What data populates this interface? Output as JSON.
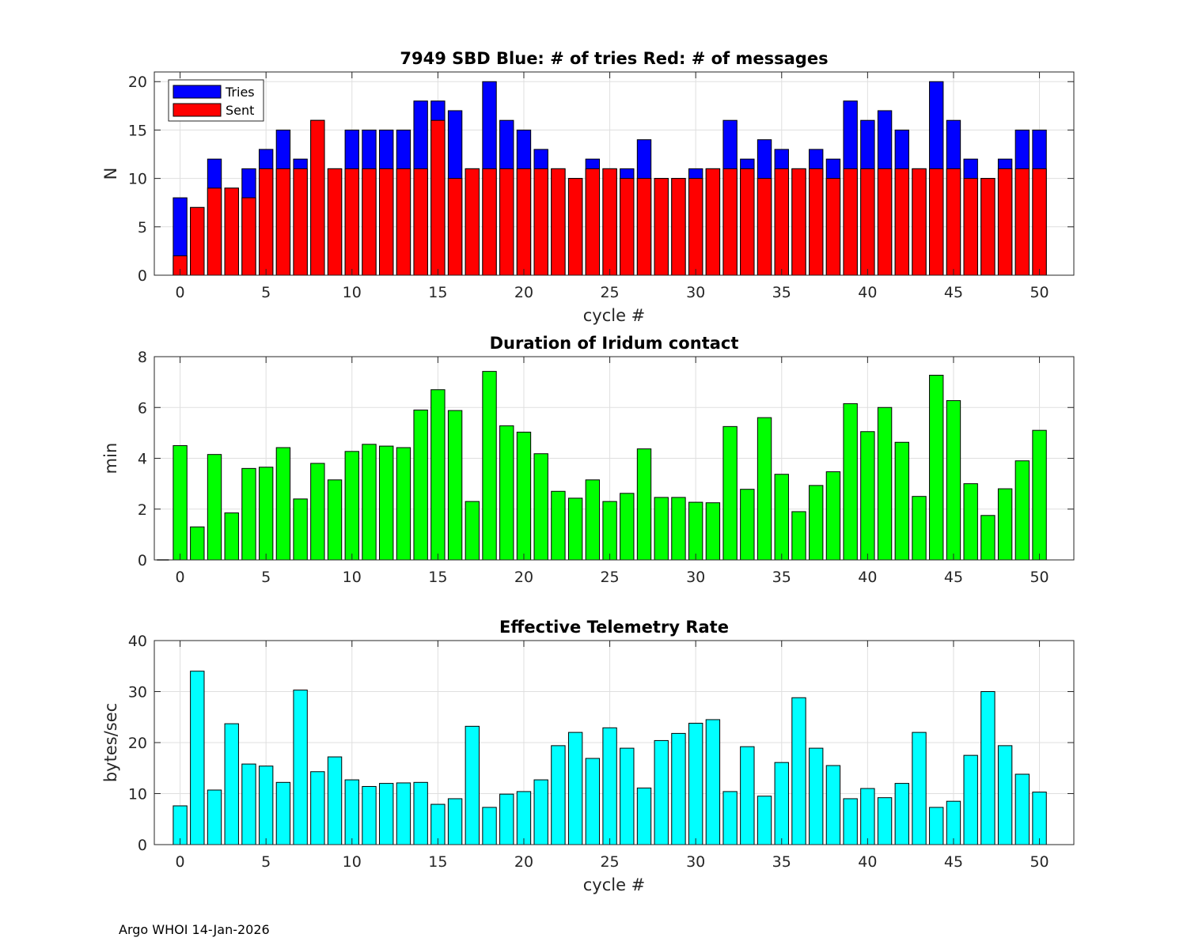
{
  "footer": "Argo WHOI 14-Jan-2026",
  "colors": {
    "tries": "#0000ff",
    "sent": "#ff0000",
    "duration": "#00ff00",
    "rate": "#00ffff",
    "grid": "#dfdfdf",
    "axis": "#262626"
  },
  "chart_data": [
    {
      "type": "bar",
      "title": "7949 SBD  Blue: # of tries   Red: # of messages",
      "xlabel": "cycle #",
      "ylabel": "N",
      "xlim": [
        -1.5,
        52
      ],
      "ylim": [
        0,
        21
      ],
      "xticks": [
        0,
        5,
        10,
        15,
        20,
        25,
        30,
        35,
        40,
        45,
        50
      ],
      "yticks": [
        0,
        5,
        10,
        15,
        20
      ],
      "legend": {
        "position": "top-left",
        "entries": [
          "Tries",
          "Sent"
        ]
      },
      "x": [
        0,
        1,
        2,
        3,
        4,
        5,
        6,
        7,
        8,
        9,
        10,
        11,
        12,
        13,
        14,
        15,
        16,
        17,
        18,
        19,
        20,
        21,
        22,
        23,
        24,
        25,
        26,
        27,
        28,
        29,
        30,
        31,
        32,
        33,
        34,
        35,
        36,
        37,
        38,
        39,
        40,
        41,
        42,
        43,
        44,
        45,
        46,
        47,
        48,
        49,
        50
      ],
      "series": [
        {
          "name": "Tries",
          "values": [
            8,
            7,
            12,
            9,
            11,
            13,
            15,
            12,
            16,
            11,
            15,
            15,
            15,
            15,
            18,
            18,
            17,
            11,
            20,
            16,
            15,
            13,
            11,
            10,
            12,
            11,
            11,
            14,
            10,
            10,
            11,
            11,
            16,
            12,
            14,
            13,
            11,
            13,
            12,
            18,
            16,
            17,
            15,
            11,
            20,
            16,
            12,
            10,
            12,
            15,
            15
          ]
        },
        {
          "name": "Sent",
          "values": [
            2,
            7,
            9,
            9,
            8,
            11,
            11,
            11,
            16,
            11,
            11,
            11,
            11,
            11,
            11,
            16,
            10,
            11,
            11,
            11,
            11,
            11,
            11,
            10,
            11,
            11,
            10,
            10,
            10,
            10,
            10,
            11,
            11,
            11,
            10,
            11,
            11,
            11,
            10,
            11,
            11,
            11,
            11,
            11,
            11,
            11,
            10,
            10,
            11,
            11,
            11
          ]
        }
      ]
    },
    {
      "type": "bar",
      "title": "Duration of Iridum contact",
      "xlabel": "",
      "ylabel": "min",
      "xlim": [
        -1.5,
        52
      ],
      "ylim": [
        0,
        8
      ],
      "xticks": [
        0,
        5,
        10,
        15,
        20,
        25,
        30,
        35,
        40,
        45,
        50
      ],
      "yticks": [
        0,
        2,
        4,
        6,
        8
      ],
      "x": [
        0,
        1,
        2,
        3,
        4,
        5,
        6,
        7,
        8,
        9,
        10,
        11,
        12,
        13,
        14,
        15,
        16,
        17,
        18,
        19,
        20,
        21,
        22,
        23,
        24,
        25,
        26,
        27,
        28,
        29,
        30,
        31,
        32,
        33,
        34,
        35,
        36,
        37,
        38,
        39,
        40,
        41,
        42,
        43,
        44,
        45,
        46,
        47,
        48,
        49,
        50
      ],
      "values": [
        4.5,
        1.3,
        4.15,
        1.85,
        3.6,
        3.65,
        4.42,
        2.4,
        3.8,
        3.15,
        4.27,
        4.55,
        4.48,
        4.42,
        5.9,
        6.7,
        5.88,
        2.3,
        7.42,
        5.28,
        5.03,
        4.18,
        2.7,
        2.43,
        3.15,
        2.3,
        2.62,
        4.37,
        2.46,
        2.46,
        2.27,
        2.25,
        5.25,
        2.78,
        5.6,
        3.37,
        1.9,
        2.93,
        3.47,
        6.15,
        5.05,
        6.0,
        4.63,
        2.5,
        7.27,
        6.27,
        3.0,
        1.75,
        2.8,
        3.9,
        5.1
      ]
    },
    {
      "type": "bar",
      "title": "Effective Telemetry Rate",
      "xlabel": "cycle #",
      "ylabel": "bytes/sec",
      "xlim": [
        -1.5,
        52
      ],
      "ylim": [
        0,
        40
      ],
      "xticks": [
        0,
        5,
        10,
        15,
        20,
        25,
        30,
        35,
        40,
        45,
        50
      ],
      "yticks": [
        0,
        10,
        20,
        30,
        40
      ],
      "x": [
        0,
        1,
        2,
        3,
        4,
        5,
        6,
        7,
        8,
        9,
        10,
        11,
        12,
        13,
        14,
        15,
        16,
        17,
        18,
        19,
        20,
        21,
        22,
        23,
        24,
        25,
        26,
        27,
        28,
        29,
        30,
        31,
        32,
        33,
        34,
        35,
        36,
        37,
        38,
        39,
        40,
        41,
        42,
        43,
        44,
        45,
        46,
        47,
        48,
        49,
        50
      ],
      "values": [
        7.6,
        34.0,
        10.7,
        23.7,
        15.8,
        15.4,
        12.2,
        30.3,
        14.3,
        17.2,
        12.7,
        11.4,
        12.0,
        12.1,
        12.2,
        7.9,
        9.0,
        23.2,
        7.3,
        9.9,
        10.4,
        12.7,
        19.4,
        22.0,
        16.9,
        22.9,
        18.9,
        11.1,
        20.4,
        21.8,
        23.8,
        24.5,
        10.4,
        19.2,
        9.5,
        16.1,
        28.8,
        18.9,
        15.5,
        9.0,
        11.0,
        9.2,
        12.0,
        22.0,
        7.3,
        8.5,
        17.5,
        30.0,
        19.4,
        13.8,
        10.3
      ]
    }
  ]
}
